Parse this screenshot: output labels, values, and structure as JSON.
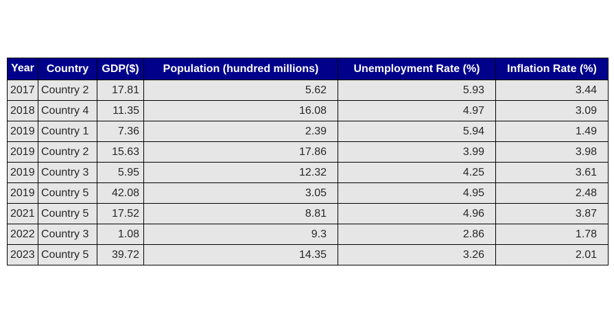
{
  "chart_data": {
    "type": "table",
    "columns": [
      "Year",
      "Country",
      "GDP($)",
      "Population (hundred millions)",
      "Unemployment Rate (%)",
      "Inflation Rate (%)"
    ],
    "rows": [
      [
        "2017",
        "Country 2",
        "17.81",
        "5.62",
        "5.93",
        "3.44"
      ],
      [
        "2018",
        "Country 4",
        "11.35",
        "16.08",
        "4.97",
        "3.09"
      ],
      [
        "2019",
        "Country 1",
        "7.36",
        "2.39",
        "5.94",
        "1.49"
      ],
      [
        "2019",
        "Country 2",
        "15.63",
        "17.86",
        "3.99",
        "3.98"
      ],
      [
        "2019",
        "Country 3",
        "5.95",
        "12.32",
        "4.25",
        "3.61"
      ],
      [
        "2019",
        "Country 5",
        "42.08",
        "3.05",
        "4.95",
        "2.48"
      ],
      [
        "2021",
        "Country 5",
        "17.52",
        "8.81",
        "4.96",
        "3.87"
      ],
      [
        "2022",
        "Country 3",
        "1.08",
        "9.3",
        "2.86",
        "1.78"
      ],
      [
        "2023",
        "Country 5",
        "39.72",
        "14.35",
        "3.26",
        "2.01"
      ]
    ],
    "colors": {
      "header_bg": "#00008b",
      "header_text": "#ffffff",
      "cell_bg": "#e6e6e6",
      "cell_text": "#262626",
      "border": "#000000"
    }
  }
}
